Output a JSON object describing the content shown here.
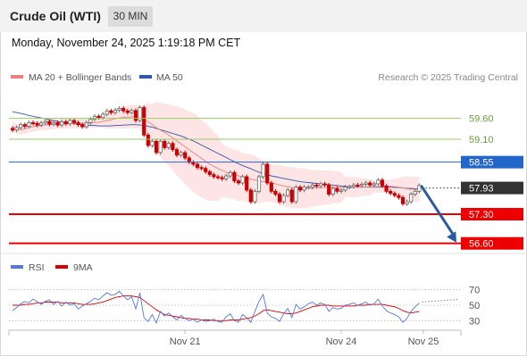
{
  "header": {
    "title": "Crude Oil (WTI)",
    "timeframe": "30 MIN"
  },
  "datetime": "Monday, November 24, 2025 1:19:18 PM CET",
  "legend": {
    "ma20_label": "MA 20 + Bollinger Bands",
    "ma50_label": "MA 50",
    "ma20_color": "#f08080",
    "ma50_color": "#3355aa",
    "credit": "Research © 2025 Trading Central"
  },
  "rsi_legend": {
    "rsi_label": "RSI",
    "ma9_label": "9MA",
    "rsi_color": "#5577dd",
    "ma9_color": "#dd0000"
  },
  "colors": {
    "resistance": "#99cc66",
    "pivot": "#2266cc",
    "support": "#ee0000",
    "current": "#333333",
    "bull_candle": "#666666",
    "bear_candle": "#cc0000",
    "arrow": "#2a5aa0",
    "bollinger_fill": "#fde0e0"
  },
  "chart_data": [
    {
      "type": "candlestick",
      "title": "",
      "x_ticks": [
        "Nov 21",
        "Nov 24",
        "Nov 25"
      ],
      "ylim": [
        56.4,
        60.3
      ],
      "levels": [
        {
          "name": "resistance-2",
          "value": 59.6,
          "label": "59.60",
          "kind": "resistance"
        },
        {
          "name": "resistance-1",
          "value": 59.1,
          "label": "59.10",
          "kind": "resistance"
        },
        {
          "name": "pivot",
          "value": 58.55,
          "label": "58.55",
          "kind": "pivot"
        },
        {
          "name": "current-price",
          "value": 57.93,
          "label": "57.93",
          "kind": "current"
        },
        {
          "name": "support-1",
          "value": 57.3,
          "label": "57.30",
          "kind": "support"
        },
        {
          "name": "support-2",
          "value": 56.6,
          "label": "56.60",
          "kind": "support"
        }
      ],
      "projection": {
        "from": 57.99,
        "to": 56.62
      },
      "close": [
        59.32,
        59.38,
        59.45,
        59.41,
        59.5,
        59.48,
        59.44,
        59.49,
        59.53,
        59.46,
        59.5,
        59.44,
        59.52,
        59.47,
        59.55,
        59.5,
        59.45,
        59.4,
        59.5,
        59.58,
        59.65,
        59.62,
        59.7,
        59.78,
        59.74,
        59.8,
        59.84,
        59.78,
        59.74,
        59.79,
        59.55,
        59.86,
        59.2,
        58.95,
        59.05,
        58.78,
        59.05,
        58.9,
        59.0,
        58.85,
        58.72,
        58.78,
        58.65,
        58.55,
        58.5,
        58.42,
        58.4,
        58.32,
        58.25,
        58.2,
        58.18,
        58.15,
        58.22,
        58.3,
        58.1,
        58.05,
        58.2,
        57.88,
        57.6,
        57.85,
        58.2,
        58.5,
        58.05,
        57.85,
        57.78,
        57.6,
        57.75,
        57.88,
        57.6,
        57.95,
        57.88,
        57.95,
        57.95,
        58.0,
        57.98,
        58.03,
        58.0,
        57.78,
        57.92,
        57.85,
        57.88,
        57.95,
        57.96,
        58.0,
        57.99,
        58.02,
        58.05,
        58.0,
        58.03,
        58.12,
        57.98,
        57.85,
        57.8,
        57.75,
        57.7,
        57.55,
        57.6,
        57.78,
        57.85,
        57.99
      ],
      "series": [
        {
          "name": "MA 20",
          "values": [
            59.4,
            59.35,
            59.33,
            59.35,
            59.38,
            59.4,
            59.42,
            59.43,
            59.44,
            59.45,
            59.46,
            59.46,
            59.47,
            59.47,
            59.48,
            59.48,
            59.48,
            59.48,
            59.48,
            59.49,
            59.5,
            59.51,
            59.53,
            59.55,
            59.57,
            59.59,
            59.61,
            59.62,
            59.63,
            59.64,
            59.64,
            59.63,
            59.58,
            59.52,
            59.45,
            59.38,
            59.32,
            59.26,
            59.2,
            59.13,
            59.06,
            58.99,
            58.92,
            58.85,
            58.78,
            58.71,
            58.64,
            58.57,
            58.5,
            58.45,
            58.4,
            58.35,
            58.31,
            58.28,
            58.25,
            58.22,
            58.2,
            58.18,
            58.14,
            58.12,
            58.1,
            58.08,
            58.07,
            58.05,
            58.03,
            58.0,
            57.98,
            57.96,
            57.94,
            57.93,
            57.92,
            57.92,
            57.92,
            57.92,
            57.93,
            57.93,
            57.94,
            57.94,
            57.95,
            57.95,
            57.95,
            57.95,
            57.95,
            57.95,
            57.95,
            57.95,
            57.95,
            57.95,
            57.96,
            57.96,
            57.97,
            57.97,
            57.97,
            57.96,
            57.95,
            57.93,
            57.91,
            57.9,
            57.9,
            57.9
          ]
        },
        {
          "name": "MA 50",
          "values": [
            59.76,
            59.74,
            59.72,
            59.7,
            59.67,
            59.65,
            59.63,
            59.61,
            59.59,
            59.57,
            59.55,
            59.53,
            59.51,
            59.5,
            59.48,
            59.47,
            59.46,
            59.45,
            59.44,
            59.43,
            59.43,
            59.42,
            59.42,
            59.42,
            59.42,
            59.43,
            59.43,
            59.44,
            59.44,
            59.45,
            59.45,
            59.44,
            59.43,
            59.41,
            59.39,
            59.36,
            59.33,
            59.3,
            59.27,
            59.24,
            59.21,
            59.18,
            59.14,
            59.1,
            59.06,
            59.01,
            58.96,
            58.91,
            58.86,
            58.81,
            58.76,
            58.71,
            58.66,
            58.61,
            58.56,
            58.51,
            58.47,
            58.43,
            58.39,
            58.35,
            58.31,
            58.28,
            58.25,
            58.22,
            58.2,
            58.18,
            58.16,
            58.14,
            58.12,
            58.1,
            58.08,
            58.07,
            58.06,
            58.05,
            58.04,
            58.03,
            58.02,
            58.01,
            58.0,
            57.99,
            57.98,
            57.97,
            57.96,
            57.96,
            57.95,
            57.95,
            57.95,
            57.95,
            57.95,
            57.95,
            57.95,
            57.95,
            57.95,
            57.94,
            57.94,
            57.93,
            57.92,
            57.92,
            57.91,
            57.91
          ]
        }
      ]
    },
    {
      "type": "line",
      "title": "",
      "y_ticks": [
        30,
        50,
        70
      ],
      "ylim": [
        20,
        80
      ],
      "series": [
        {
          "name": "RSI",
          "values": [
            43,
            47,
            52,
            55,
            53,
            58,
            55,
            51,
            55,
            57,
            51,
            55,
            49,
            54,
            50,
            52,
            45,
            49,
            52,
            55,
            59,
            57,
            62,
            66,
            63,
            64,
            68,
            62,
            57,
            61,
            45,
            66,
            34,
            29,
            38,
            27,
            42,
            36,
            40,
            35,
            31,
            37,
            33,
            30,
            32,
            28,
            31,
            29,
            30,
            32,
            29,
            28,
            35,
            39,
            30,
            28,
            38,
            34,
            28,
            42,
            55,
            64,
            40,
            35,
            33,
            29,
            39,
            46,
            34,
            51,
            45,
            48,
            52,
            54,
            50,
            53,
            51,
            42,
            47,
            45,
            46,
            50,
            51,
            53,
            50,
            52,
            54,
            50,
            52,
            58,
            49,
            43,
            40,
            38,
            35,
            28,
            33,
            42,
            48,
            53
          ]
        },
        {
          "name": "9MA",
          "values": [
            50,
            50,
            50,
            51,
            51,
            52,
            53,
            53,
            54,
            54,
            54,
            54,
            53,
            53,
            53,
            53,
            52,
            51,
            51,
            51,
            52,
            53,
            54,
            56,
            58,
            60,
            61,
            62,
            62,
            62,
            61,
            60,
            56,
            52,
            48,
            44,
            41,
            38,
            37,
            36,
            35,
            34,
            33,
            33,
            32,
            32,
            31,
            31,
            31,
            30,
            30,
            30,
            30,
            31,
            31,
            31,
            32,
            33,
            34,
            36,
            39,
            43,
            44,
            43,
            42,
            41,
            40,
            39,
            39,
            40,
            42,
            44,
            46,
            48,
            49,
            50,
            50,
            50,
            49,
            49,
            49,
            49,
            49,
            49,
            50,
            50,
            50,
            51,
            51,
            51,
            51,
            50,
            49,
            48,
            46,
            43,
            41,
            40,
            41,
            42
          ]
        }
      ]
    }
  ]
}
